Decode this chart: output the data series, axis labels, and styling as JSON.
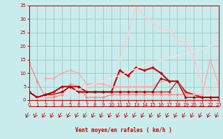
{
  "background_color": "#c8ecec",
  "grid_color": "#a0c8c8",
  "xlabel": "Vent moyen/en rafales ( km/h )",
  "xlim": [
    0,
    23
  ],
  "ylim": [
    0,
    35
  ],
  "yticks": [
    0,
    5,
    10,
    15,
    20,
    25,
    30,
    35
  ],
  "xticks": [
    0,
    1,
    2,
    3,
    4,
    5,
    6,
    7,
    8,
    9,
    10,
    11,
    12,
    13,
    14,
    15,
    16,
    17,
    18,
    19,
    20,
    21,
    22,
    23
  ],
  "lines": [
    {
      "x": [
        0,
        1,
        2,
        3,
        4,
        5,
        6,
        7,
        8,
        9,
        10,
        11,
        12,
        13,
        14,
        15,
        16,
        17,
        18,
        19,
        20,
        21,
        22,
        23
      ],
      "y": [
        14,
        7,
        1,
        1,
        2,
        6,
        5,
        1,
        1,
        1,
        2,
        2,
        2,
        2,
        2,
        2,
        2,
        2,
        2,
        2,
        2,
        1,
        1,
        1
      ],
      "color": "#ff8888",
      "lw": 1.0,
      "marker": "D",
      "ms": 2.0
    },
    {
      "x": [
        0,
        1,
        2,
        3,
        4,
        5,
        6,
        7,
        8,
        9,
        10,
        11,
        12,
        13,
        14,
        15,
        16,
        17,
        18,
        19,
        20,
        21,
        22,
        23
      ],
      "y": [
        3,
        1,
        2,
        3,
        5,
        5,
        3,
        3,
        3,
        3,
        3,
        11,
        9,
        12,
        11,
        12,
        10,
        7,
        7,
        3,
        2,
        1,
        1,
        1
      ],
      "color": "#cc0000",
      "lw": 1.5,
      "marker": "D",
      "ms": 2.0
    },
    {
      "x": [
        0,
        1,
        2,
        3,
        4,
        5,
        6,
        7,
        8,
        9,
        10,
        11,
        12,
        13,
        14,
        15,
        16,
        17,
        18,
        19,
        20,
        21,
        22,
        23
      ],
      "y": [
        3,
        1,
        2,
        2,
        3,
        5,
        5,
        3,
        3,
        3,
        3,
        3,
        3,
        3,
        3,
        3,
        3,
        3,
        7,
        3,
        2,
        1,
        1,
        1
      ],
      "color": "#dd2222",
      "lw": 1.0,
      "marker": "D",
      "ms": 2.0
    },
    {
      "x": [
        2,
        3,
        4,
        5,
        6,
        7,
        8,
        9,
        10,
        11,
        12,
        13,
        14,
        15,
        16,
        17,
        18,
        19,
        20,
        21,
        22,
        23
      ],
      "y": [
        8,
        8,
        10,
        11,
        10,
        6,
        6,
        6,
        5,
        5,
        5,
        5,
        5,
        5,
        7,
        7,
        7,
        2,
        2,
        2,
        15,
        6
      ],
      "color": "#ffaaaa",
      "lw": 1.0,
      "marker": "D",
      "ms": 2.0
    },
    {
      "x": [
        0,
        1,
        2,
        3,
        4,
        5,
        6,
        7,
        8,
        9,
        10,
        11,
        12,
        13,
        14,
        15,
        16,
        17,
        18,
        19,
        20,
        21,
        22,
        23
      ],
      "y": [
        3,
        1,
        2,
        2,
        3,
        5,
        5,
        3,
        3,
        3,
        3,
        3,
        3,
        3,
        3,
        3,
        8,
        7,
        7,
        1,
        1,
        1,
        1,
        1
      ],
      "color": "#aa0000",
      "lw": 1.0,
      "marker": "D",
      "ms": 2.0
    },
    {
      "x": [
        11,
        12,
        13,
        14,
        15,
        16,
        17,
        18,
        19,
        20,
        21,
        22,
        23
      ],
      "y": [
        15,
        24,
        35,
        31,
        29,
        26,
        26,
        22,
        21,
        16,
        6,
        3,
        7
      ],
      "color": "#ffcccc",
      "lw": 1.2,
      "marker": "D",
      "ms": 2.0
    },
    {
      "x": [
        0,
        5,
        10,
        15,
        20,
        23
      ],
      "y": [
        0,
        3,
        8,
        14,
        18,
        21
      ],
      "color": "#ffdddd",
      "lw": 1.0,
      "marker": null,
      "ms": 0
    }
  ],
  "arrow_color": "#cc0000",
  "xlabel_color": "#cc0000",
  "tick_color": "#cc0000",
  "axis_color": "#cc0000"
}
